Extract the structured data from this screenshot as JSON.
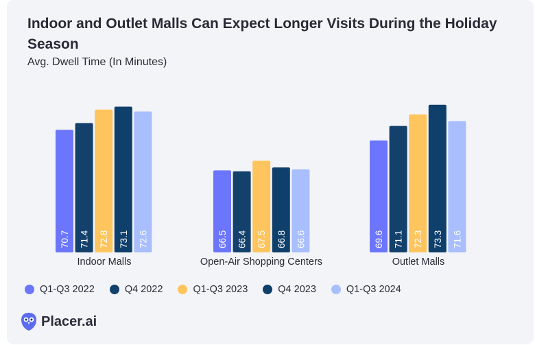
{
  "title": "Indoor and Outlet Malls Can Expect Longer Visits During the Holiday Season",
  "subtitle": "Avg. Dwell Time (In Minutes)",
  "brand": "Placer.ai",
  "colors": {
    "q13_2022": "#6c76fc",
    "q4_2022": "#14416c",
    "q13_2023": "#fec55e",
    "q4_2023": "#0f3f6b",
    "q13_2024": "#a8befd",
    "logo": "#5b6cf0"
  },
  "legend": [
    {
      "label": "Q1-Q3 2022",
      "color": "#6c76fc"
    },
    {
      "label": "Q4 2022",
      "color": "#14416c"
    },
    {
      "label": "Q1-Q3 2023",
      "color": "#fec55e"
    },
    {
      "label": "Q4 2023",
      "color": "#0f3f6b"
    },
    {
      "label": "Q1-Q3 2024",
      "color": "#a8befd"
    }
  ],
  "chart_data": {
    "type": "bar",
    "title": "Indoor and Outlet Malls Can Expect Longer Visits During the Holiday Season",
    "subtitle": "Avg. Dwell Time (In Minutes)",
    "categories": [
      "Indoor Malls",
      "Open-Air Shopping Centers",
      "Outlet Malls"
    ],
    "series": [
      {
        "name": "Q1-Q3 2022",
        "values": [
          70.7,
          66.5,
          69.6
        ],
        "labels": [
          "70.7",
          "66.5",
          "69.6"
        ]
      },
      {
        "name": "Q4 2022",
        "values": [
          71.4,
          66.4,
          71.1
        ],
        "labels": [
          "71.4",
          "66.4",
          "71.1"
        ]
      },
      {
        "name": "Q1-Q3 2023",
        "values": [
          72.8,
          67.5,
          72.3
        ],
        "labels": [
          "72.8",
          "67.5",
          "72.3"
        ]
      },
      {
        "name": "Q4 2023",
        "values": [
          73.1,
          66.8,
          73.3
        ],
        "labels": [
          "73.1",
          "66.8",
          "73.3"
        ]
      },
      {
        "name": "Q1-Q3 2024",
        "values": [
          72.6,
          66.6,
          71.6
        ],
        "labels": [
          "72.6",
          "66.6",
          "71.6"
        ]
      }
    ],
    "ylim": [
      58,
      74.7
    ],
    "grid": false,
    "legend_position": "bottom-left"
  }
}
